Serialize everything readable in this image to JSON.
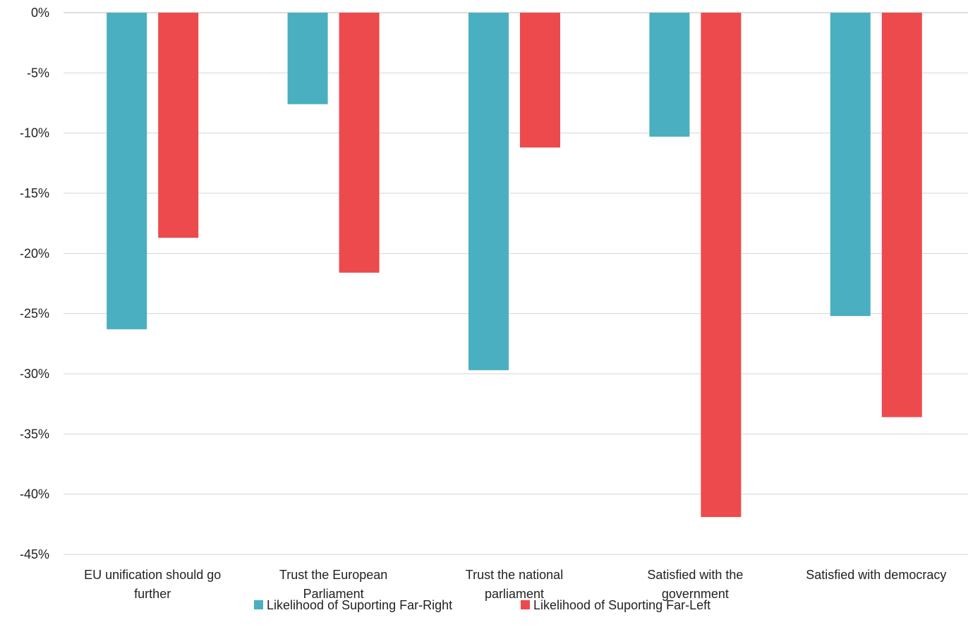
{
  "chart_data": {
    "type": "bar",
    "title": "",
    "xlabel": "",
    "ylabel": "",
    "categories": [
      [
        "EU unification should go",
        "further"
      ],
      [
        "Trust the European",
        "Parliament"
      ],
      [
        "Trust the national",
        "parliament"
      ],
      [
        "Satisfied with the",
        "government"
      ],
      [
        "Satisfied with democracy"
      ]
    ],
    "series": [
      {
        "name": "Likelihood of Suporting Far-Right",
        "color": "#4aafc0",
        "values": [
          -26.3,
          -7.6,
          -29.7,
          -10.3,
          -25.2
        ]
      },
      {
        "name": "Likelihood of Suporting Far-Left",
        "color": "#ec4a4c",
        "values": [
          -18.7,
          -21.6,
          -11.2,
          -41.9,
          -33.6
        ]
      }
    ],
    "ylim": [
      -45,
      0
    ],
    "yticks": [
      0,
      -5,
      -10,
      -15,
      -20,
      -25,
      -30,
      -35,
      -40,
      -45
    ],
    "ytick_labels": [
      "0%",
      "-5%",
      "-10%",
      "-15%",
      "-20%",
      "-25%",
      "-30%",
      "-35%",
      "-40%",
      "-45%"
    ],
    "grid": true,
    "legend_position": "bottom"
  }
}
